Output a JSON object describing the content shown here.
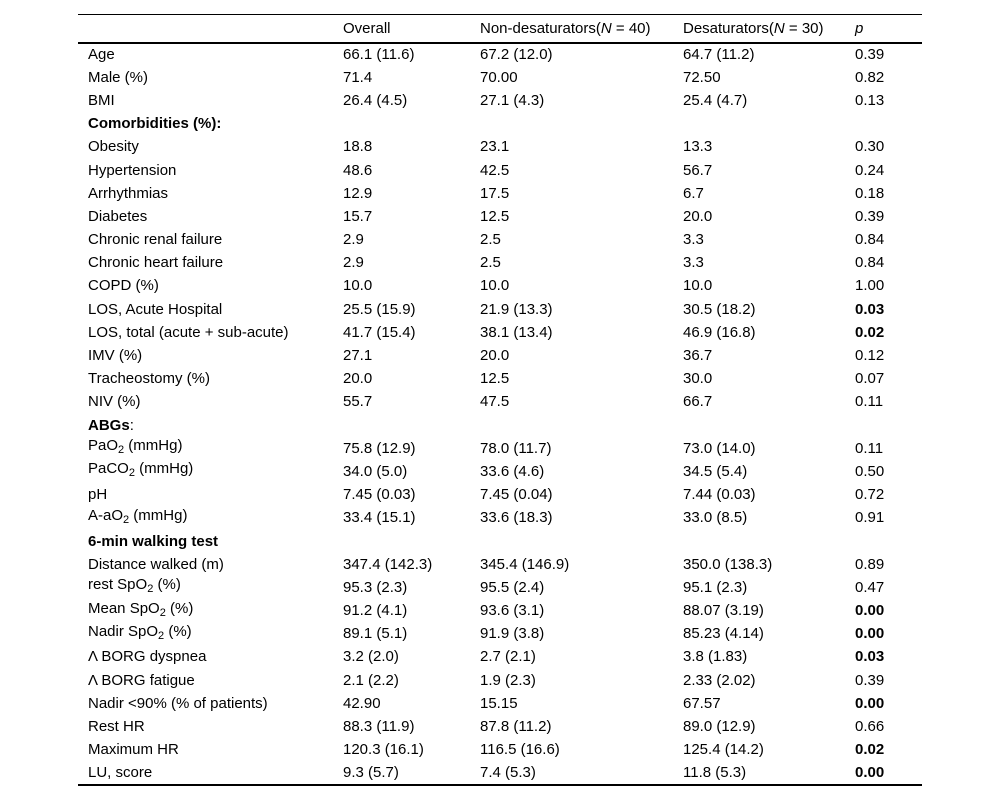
{
  "table": {
    "header": [
      {
        "segments": []
      },
      {
        "segments": [
          {
            "t": "Overall"
          }
        ]
      },
      {
        "segments": [
          {
            "t": "Non-desaturators("
          },
          {
            "t": "N",
            "i": true
          },
          {
            "t": " = 40)"
          }
        ]
      },
      {
        "segments": [
          {
            "t": "Desaturators("
          },
          {
            "t": "N",
            "i": true
          },
          {
            "t": " = 30)"
          }
        ]
      },
      {
        "segments": [
          {
            "t": "p",
            "i": true
          }
        ]
      }
    ],
    "rows": [
      {
        "label": [
          {
            "t": "Age"
          }
        ],
        "values": [
          "66.1 (11.6)",
          "67.2 (12.0)",
          "64.7 (11.2)"
        ],
        "p": "0.39",
        "p_bold": false
      },
      {
        "label": [
          {
            "t": "Male (%)"
          }
        ],
        "values": [
          "71.4",
          "70.00",
          "72.50"
        ],
        "p": "0.82",
        "p_bold": false
      },
      {
        "label": [
          {
            "t": "BMI"
          }
        ],
        "values": [
          "26.4 (4.5)",
          "27.1 (4.3)",
          "25.4 (4.7)"
        ],
        "p": "0.13",
        "p_bold": false
      },
      {
        "label": [
          {
            "t": "Comorbidities (%):",
            "b": true
          }
        ],
        "values": [
          "",
          "",
          ""
        ],
        "p": "",
        "p_bold": false
      },
      {
        "label": [
          {
            "t": "Obesity"
          }
        ],
        "values": [
          "18.8",
          "23.1",
          "13.3"
        ],
        "p": "0.30",
        "p_bold": false
      },
      {
        "label": [
          {
            "t": "Hypertension"
          }
        ],
        "values": [
          "48.6",
          "42.5",
          "56.7"
        ],
        "p": "0.24",
        "p_bold": false
      },
      {
        "label": [
          {
            "t": "Arrhythmias"
          }
        ],
        "values": [
          "12.9",
          "17.5",
          "6.7"
        ],
        "p": "0.18",
        "p_bold": false
      },
      {
        "label": [
          {
            "t": "Diabetes"
          }
        ],
        "values": [
          "15.7",
          "12.5",
          "20.0"
        ],
        "p": "0.39",
        "p_bold": false
      },
      {
        "label": [
          {
            "t": "Chronic renal failure"
          }
        ],
        "values": [
          "2.9",
          "2.5",
          "3.3"
        ],
        "p": "0.84",
        "p_bold": false
      },
      {
        "label": [
          {
            "t": "Chronic heart failure"
          }
        ],
        "values": [
          "2.9",
          "2.5",
          "3.3"
        ],
        "p": "0.84",
        "p_bold": false
      },
      {
        "label": [
          {
            "t": "COPD (%)"
          }
        ],
        "values": [
          "10.0",
          "10.0",
          "10.0"
        ],
        "p": "1.00",
        "p_bold": false
      },
      {
        "label": [
          {
            "t": "LOS, Acute Hospital"
          }
        ],
        "values": [
          "25.5 (15.9)",
          "21.9 (13.3)",
          "30.5 (18.2)"
        ],
        "p": "0.03",
        "p_bold": true
      },
      {
        "label": [
          {
            "t": "LOS, total (acute + sub-acute)"
          }
        ],
        "values": [
          "41.7 (15.4)",
          "38.1 (13.4)",
          "46.9 (16.8)"
        ],
        "p": "0.02",
        "p_bold": true
      },
      {
        "label": [
          {
            "t": "IMV (%)"
          }
        ],
        "values": [
          "27.1",
          "20.0",
          "36.7"
        ],
        "p": "0.12",
        "p_bold": false
      },
      {
        "label": [
          {
            "t": "Tracheostomy (%)"
          }
        ],
        "values": [
          "20.0",
          "12.5",
          "30.0"
        ],
        "p": "0.07",
        "p_bold": false
      },
      {
        "label": [
          {
            "t": "NIV (%)"
          }
        ],
        "values": [
          "55.7",
          "47.5",
          "66.7"
        ],
        "p": "0.11",
        "p_bold": false
      },
      {
        "label": [
          {
            "t": "ABGs",
            "b": true
          },
          {
            "t": ":"
          }
        ],
        "values": [
          "",
          "",
          ""
        ],
        "p": "",
        "p_bold": false
      },
      {
        "label": [
          {
            "t": "PaO"
          },
          {
            "t": "2",
            "sub": true
          },
          {
            "t": " (mmHg)"
          }
        ],
        "values": [
          "75.8 (12.9)",
          "78.0 (11.7)",
          "73.0 (14.0)"
        ],
        "p": "0.11",
        "p_bold": false
      },
      {
        "label": [
          {
            "t": "PaCO"
          },
          {
            "t": "2",
            "sub": true
          },
          {
            "t": " (mmHg)"
          }
        ],
        "values": [
          "34.0 (5.0)",
          "33.6 (4.6)",
          "34.5 (5.4)"
        ],
        "p": "0.50",
        "p_bold": false
      },
      {
        "label": [
          {
            "t": "pH"
          }
        ],
        "values": [
          "7.45 (0.03)",
          "7.45 (0.04)",
          "7.44 (0.03)"
        ],
        "p": "0.72",
        "p_bold": false
      },
      {
        "label": [
          {
            "t": "A-aO"
          },
          {
            "t": "2",
            "sub": true
          },
          {
            "t": " (mmHg)"
          }
        ],
        "values": [
          "33.4 (15.1)",
          "33.6 (18.3)",
          "33.0 (8.5)"
        ],
        "p": "0.91",
        "p_bold": false
      },
      {
        "label": [
          {
            "t": "6-min walking test",
            "b": true
          }
        ],
        "values": [
          "",
          "",
          ""
        ],
        "p": "",
        "p_bold": false
      },
      {
        "label": [
          {
            "t": "Distance walked (m)"
          }
        ],
        "values": [
          "347.4 (142.3)",
          "345.4 (146.9)",
          "350.0 (138.3)"
        ],
        "p": "0.89",
        "p_bold": false
      },
      {
        "label": [
          {
            "t": "rest SpO"
          },
          {
            "t": "2",
            "sub": true
          },
          {
            "t": " (%)"
          }
        ],
        "values": [
          "95.3 (2.3)",
          "95.5 (2.4)",
          "95.1 (2.3)"
        ],
        "p": "0.47",
        "p_bold": false
      },
      {
        "label": [
          {
            "t": "Mean SpO"
          },
          {
            "t": "2",
            "sub": true
          },
          {
            "t": " (%)"
          }
        ],
        "values": [
          "91.2 (4.1)",
          "93.6 (3.1)",
          "88.07 (3.19)"
        ],
        "p": "0.00",
        "p_bold": true
      },
      {
        "label": [
          {
            "t": "Nadir SpO"
          },
          {
            "t": "2",
            "sub": true
          },
          {
            "t": " (%)"
          }
        ],
        "values": [
          "89.1 (5.1)",
          "91.9 (3.8)",
          "85.23 (4.14)"
        ],
        "p": "0.00",
        "p_bold": true
      },
      {
        "label": [
          {
            "t": "Λ BORG dyspnea"
          }
        ],
        "values": [
          "3.2 (2.0)",
          "2.7 (2.1)",
          "3.8 (1.83)"
        ],
        "p": "0.03",
        "p_bold": true
      },
      {
        "label": [
          {
            "t": "Λ BORG fatigue"
          }
        ],
        "values": [
          "2.1 (2.2)",
          "1.9 (2.3)",
          "2.33 (2.02)"
        ],
        "p": "0.39",
        "p_bold": false
      },
      {
        "label": [
          {
            "t": "Nadir <90% (% of patients)"
          }
        ],
        "values": [
          "42.90",
          "15.15",
          "67.57"
        ],
        "p": "0.00",
        "p_bold": true
      },
      {
        "label": [
          {
            "t": "Rest HR"
          }
        ],
        "values": [
          "88.3 (11.9)",
          "87.8 (11.2)",
          "89.0 (12.9)"
        ],
        "p": "0.66",
        "p_bold": false
      },
      {
        "label": [
          {
            "t": "Maximum HR"
          }
        ],
        "values": [
          "120.3 (16.1)",
          "116.5 (16.6)",
          "125.4 (14.2)"
        ],
        "p": "0.02",
        "p_bold": true
      },
      {
        "label": [
          {
            "t": "LU, score"
          }
        ],
        "values": [
          "9.3 (5.7)",
          "7.4 (5.3)",
          "11.8 (5.3)"
        ],
        "p": "0.00",
        "p_bold": true
      }
    ]
  }
}
